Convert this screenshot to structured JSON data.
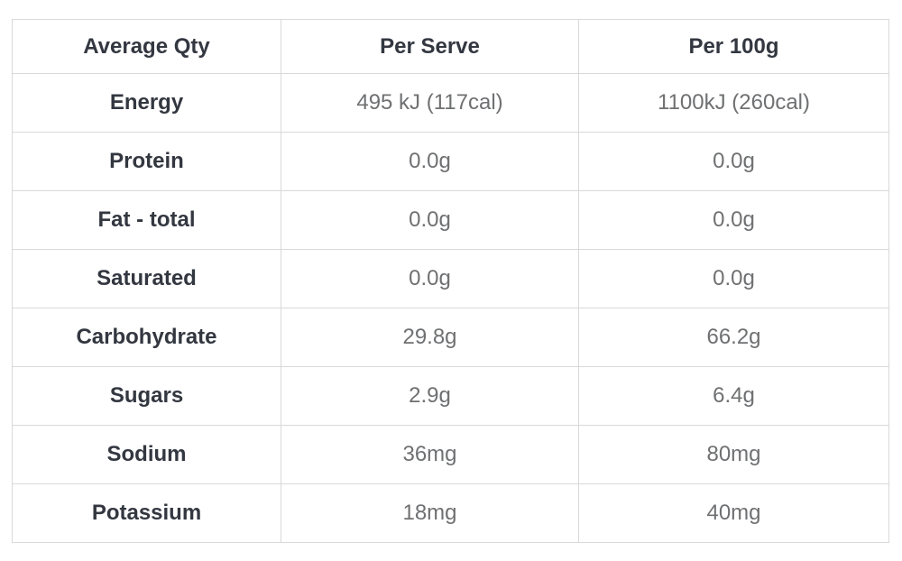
{
  "table": {
    "columns": [
      {
        "label": "Average Qty"
      },
      {
        "label": "Per Serve"
      },
      {
        "label": "Per 100g"
      }
    ],
    "rows": [
      {
        "label": "Energy",
        "per_serve": "495 kJ (117cal)",
        "per_100g": "1100kJ (260cal)"
      },
      {
        "label": "Protein",
        "per_serve": "0.0g",
        "per_100g": "0.0g"
      },
      {
        "label": "Fat - total",
        "per_serve": "0.0g",
        "per_100g": "0.0g"
      },
      {
        "label": "Saturated",
        "per_serve": "0.0g",
        "per_100g": "0.0g"
      },
      {
        "label": "Carbohydrate",
        "per_serve": "29.8g",
        "per_100g": "66.2g"
      },
      {
        "label": "Sugars",
        "per_serve": "2.9g",
        "per_100g": "6.4g"
      },
      {
        "label": "Sodium",
        "per_serve": "36mg",
        "per_100g": "80mg"
      },
      {
        "label": "Potassium",
        "per_serve": "18mg",
        "per_100g": "40mg"
      }
    ],
    "colors": {
      "border": "#d8d9da",
      "header_text": "#333740",
      "value_text": "#6f7072",
      "background": "#ffffff"
    }
  },
  "chart_data": {
    "type": "table",
    "columns": [
      "Average Qty",
      "Per Serve",
      "Per 100g"
    ],
    "rows": [
      [
        "Energy",
        "495 kJ (117cal)",
        "1100kJ (260cal)"
      ],
      [
        "Protein",
        "0.0g",
        "0.0g"
      ],
      [
        "Fat - total",
        "0.0g",
        "0.0g"
      ],
      [
        "Saturated",
        "0.0g",
        "0.0g"
      ],
      [
        "Carbohydrate",
        "29.8g",
        "66.2g"
      ],
      [
        "Sugars",
        "2.9g",
        "6.4g"
      ],
      [
        "Sodium",
        "36mg",
        "80mg"
      ],
      [
        "Potassium",
        "18mg",
        "40mg"
      ]
    ],
    "layout_hints": {
      "header_bold": true,
      "first_column_bold": true,
      "grid": true,
      "text_align": "center"
    }
  }
}
